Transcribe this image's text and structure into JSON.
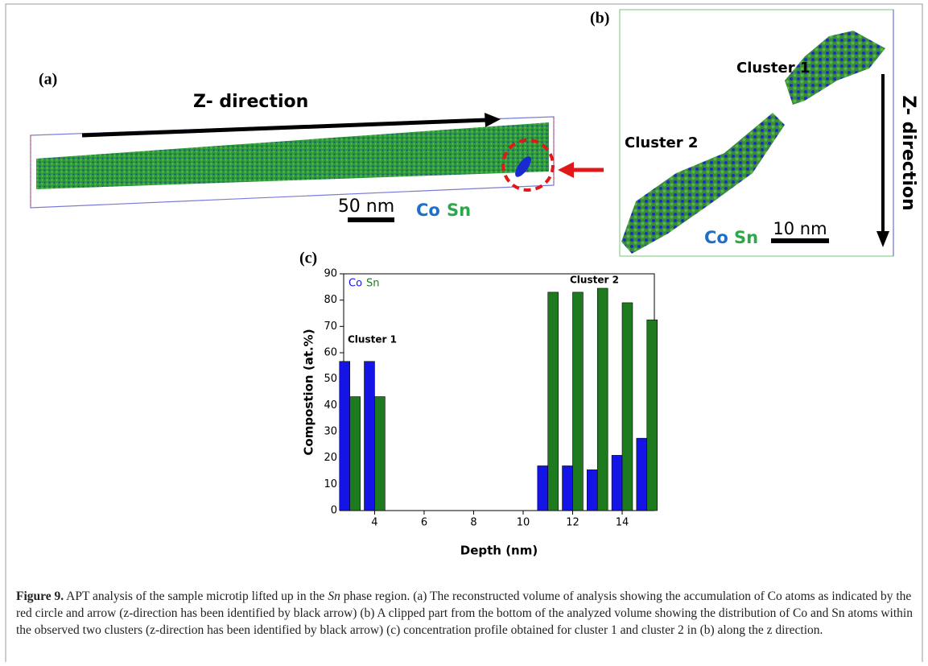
{
  "panel_a": {
    "label": "(a)",
    "direction_label": "Z- direction",
    "scale_label": "50 nm",
    "legend": [
      "Co",
      "Sn"
    ]
  },
  "panel_b": {
    "label": "(b)",
    "cluster_labels": [
      "Cluster 1",
      "Cluster 2"
    ],
    "direction_label": "Z- direction",
    "scale_label": "10 nm",
    "legend": [
      "Co",
      "Sn"
    ]
  },
  "chart_data": {
    "type": "bar",
    "label": "(c)",
    "x_label": "Depth (nm)",
    "y_label": "Compostion (at.%)",
    "x": [
      3,
      4,
      11,
      12,
      13,
      14,
      15
    ],
    "series": [
      {
        "name": "Co",
        "color": "#1414e6",
        "values": [
          56.7,
          56.7,
          17,
          17,
          15.5,
          21,
          27.5
        ]
      },
      {
        "name": "Sn",
        "color": "#1e7a1e",
        "values": [
          43.3,
          43.3,
          83,
          83,
          84.5,
          79,
          72.5
        ]
      }
    ],
    "xlim": [
      2.75,
      15.3
    ],
    "xticks": [
      4,
      6,
      8,
      10,
      12,
      14
    ],
    "ylim": [
      0,
      90
    ],
    "yticks": [
      0,
      10,
      20,
      30,
      40,
      50,
      60,
      70,
      80,
      90
    ],
    "annotations": [
      "Cluster 1",
      "Cluster 2"
    ]
  },
  "caption": {
    "label": "Figure 9.",
    "text_before": " APT analysis of the sample microtip lifted up in the ",
    "italic": "Sn",
    "text_after": " phase region. (a) The reconstructed volume of analysis showing the accumulation of Co atoms as indicated by the red circle and arrow (z-direction has been identified by black arrow) (b) A clipped part from the bottom of the analyzed volume showing the distribution of Co and Sn atoms within the observed two clusters (z-direction has been identified by black arrow) (c) concentration profile obtained for cluster 1 and cluster 2 in (b) along the z direction."
  }
}
